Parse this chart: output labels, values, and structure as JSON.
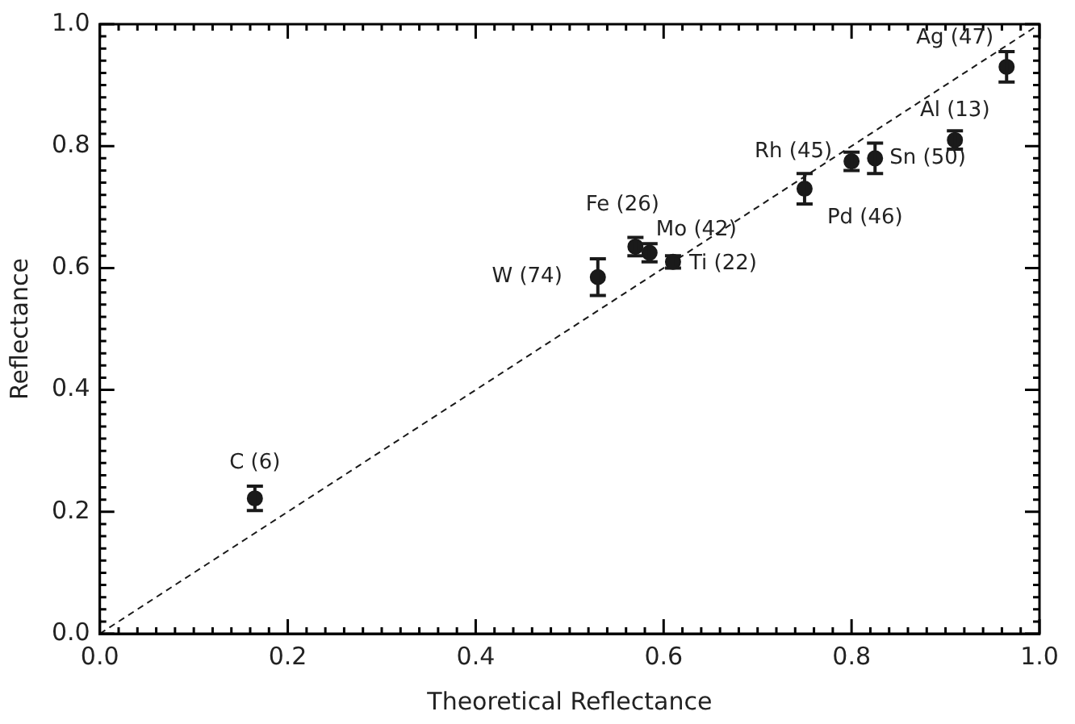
{
  "chart_data": {
    "type": "scatter",
    "xlabel": "Theoretical Reflectance",
    "ylabel": "Reflectance",
    "xlim": [
      0,
      1
    ],
    "ylim": [
      0,
      1
    ],
    "xticks": [
      {
        "value": 0,
        "label": "0.0"
      },
      {
        "value": 0.2,
        "label": "0.2"
      },
      {
        "value": 0.4,
        "label": "0.4"
      },
      {
        "value": 0.6,
        "label": "0.6"
      },
      {
        "value": 0.8,
        "label": "0.8"
      },
      {
        "value": 1,
        "label": "1.0"
      }
    ],
    "yticks": [
      {
        "value": 0,
        "label": "0.0"
      },
      {
        "value": 0.2,
        "label": "0.2"
      },
      {
        "value": 0.4,
        "label": "0.4"
      },
      {
        "value": 0.6,
        "label": "0.6"
      },
      {
        "value": 0.8,
        "label": "0.8"
      },
      {
        "value": 1,
        "label": "1.0"
      }
    ],
    "grid": false,
    "legend": false,
    "marker": "circle",
    "series": [
      {
        "color": "#1a1a1a",
        "x": [
          0.165,
          0.53,
          0.57,
          0.585,
          0.61,
          0.75,
          0.8,
          0.825,
          0.91,
          0.965
        ],
        "values": [
          0.222,
          0.585,
          0.635,
          0.625,
          0.61,
          0.73,
          0.775,
          0.78,
          0.81,
          0.93
        ],
        "errors": [
          0.02,
          0.03,
          0.015,
          0.015,
          0.01,
          0.025,
          0.015,
          0.025,
          0.015,
          0.025
        ]
      },
      {
        "type": "line",
        "color": "#1a1a1a",
        "line_style": "dashed",
        "marker": "none",
        "x": [
          0,
          1
        ],
        "values": [
          0,
          1
        ]
      }
    ],
    "annotations": [
      {
        "text": "C (6)",
        "x": 0.165,
        "y": 0.222
      },
      {
        "text": "W (74)",
        "x": 0.53,
        "y": 0.585
      },
      {
        "text": "Fe (26)",
        "x": 0.57,
        "y": 0.635
      },
      {
        "text": "Mo (42)",
        "x": 0.585,
        "y": 0.625
      },
      {
        "text": "Ti (22)",
        "x": 0.61,
        "y": 0.61
      },
      {
        "text": "Pd (46)",
        "x": 0.75,
        "y": 0.73
      },
      {
        "text": "Rh (45)",
        "x": 0.8,
        "y": 0.775
      },
      {
        "text": "Sn (50)",
        "x": 0.825,
        "y": 0.78
      },
      {
        "text": "Al (13)",
        "x": 0.91,
        "y": 0.81
      },
      {
        "text": "Ag (47)",
        "x": 0.965,
        "y": 0.93
      }
    ]
  }
}
